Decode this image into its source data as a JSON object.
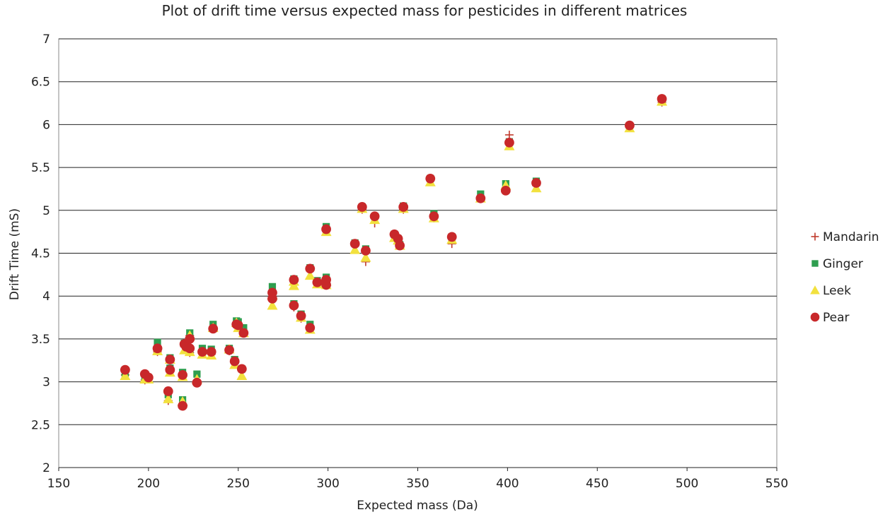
{
  "chart_data": {
    "type": "scatter",
    "title": "Plot of drift time versus expected mass for pesticides in different matrices",
    "xlabel": "Expected mass (Da)",
    "ylabel": "Drift Time (mS)",
    "xlim": [
      150,
      550
    ],
    "ylim": [
      2,
      7
    ],
    "xticks": [
      150,
      200,
      250,
      300,
      350,
      400,
      450,
      500,
      550
    ],
    "yticks": [
      2,
      2.5,
      3,
      3.5,
      4,
      4.5,
      5,
      5.5,
      6,
      6.5,
      7
    ],
    "xtick_labels": [
      "150",
      "200",
      "250",
      "300",
      "350",
      "400",
      "450",
      "500",
      "550"
    ],
    "ytick_labels": [
      "2",
      "2.5",
      "3",
      "3.5",
      "4",
      "4.5",
      "5",
      "5.5",
      "6",
      "6.5",
      "7"
    ],
    "grid": "horizontal",
    "legend_position": "right",
    "series": [
      {
        "name": "Mandarin",
        "marker": "plus",
        "color": "#c0392b",
        "x": [
          187,
          198,
          200,
          205,
          211,
          212,
          212,
          219,
          219,
          220,
          221,
          223,
          223,
          227,
          230,
          235,
          236,
          245,
          248,
          249,
          250,
          252,
          253,
          269,
          269,
          281,
          281,
          285,
          290,
          290,
          294,
          299,
          299,
          299,
          315,
          319,
          321,
          326,
          337,
          339,
          340,
          342,
          357,
          359,
          369,
          385,
          399,
          401,
          416,
          468,
          486
        ],
        "y": [
          3.08,
          3.02,
          3.03,
          3.35,
          2.78,
          3.12,
          3.27,
          2.74,
          3.08,
          3.41,
          3.38,
          3.34,
          3.54,
          3.0,
          3.33,
          3.32,
          3.63,
          3.36,
          3.22,
          3.68,
          3.64,
          3.13,
          3.57,
          3.97,
          4.06,
          3.87,
          4.18,
          3.74,
          3.62,
          4.32,
          4.15,
          4.17,
          4.14,
          4.76,
          4.59,
          5.01,
          4.4,
          4.85,
          4.7,
          4.64,
          4.59,
          5.01,
          5.35,
          4.91,
          4.61,
          5.14,
          5.26,
          5.88,
          5.29,
          5.97,
          6.26
        ]
      },
      {
        "name": "Ginger",
        "marker": "square",
        "color": "#2e9e4f",
        "x": [
          187,
          198,
          200,
          205,
          211,
          212,
          212,
          219,
          219,
          220,
          221,
          223,
          223,
          227,
          230,
          235,
          236,
          245,
          248,
          249,
          250,
          252,
          253,
          269,
          269,
          281,
          281,
          285,
          290,
          290,
          294,
          299,
          299,
          299,
          315,
          319,
          321,
          326,
          337,
          339,
          340,
          342,
          357,
          359,
          369,
          385,
          399,
          401,
          416,
          468,
          486
        ],
        "y": [
          3.1,
          3.06,
          3.05,
          3.46,
          2.85,
          3.16,
          3.28,
          2.79,
          3.11,
          3.45,
          3.44,
          3.37,
          3.57,
          3.09,
          3.39,
          3.38,
          3.67,
          3.39,
          3.26,
          3.71,
          3.7,
          3.15,
          3.63,
          3.99,
          4.11,
          3.91,
          4.2,
          3.79,
          3.67,
          4.33,
          4.18,
          4.22,
          4.18,
          4.81,
          4.62,
          5.04,
          4.55,
          4.93,
          4.72,
          4.67,
          4.6,
          5.05,
          5.37,
          4.96,
          4.69,
          5.19,
          5.31,
          5.8,
          5.34,
          5.99,
          6.3
        ]
      },
      {
        "name": "Leek",
        "marker": "triangle",
        "color": "#f2e13e",
        "x": [
          187,
          198,
          200,
          205,
          211,
          212,
          212,
          219,
          219,
          220,
          221,
          223,
          223,
          227,
          230,
          235,
          236,
          245,
          248,
          249,
          250,
          252,
          253,
          269,
          269,
          281,
          281,
          285,
          290,
          290,
          294,
          299,
          299,
          299,
          315,
          319,
          321,
          326,
          337,
          339,
          340,
          342,
          357,
          359,
          369,
          385,
          399,
          401,
          416,
          468,
          486
        ],
        "y": [
          3.07,
          3.03,
          3.03,
          3.36,
          2.8,
          3.11,
          3.26,
          2.77,
          3.06,
          3.37,
          3.4,
          3.35,
          3.54,
          3.03,
          3.32,
          3.31,
          3.63,
          3.38,
          3.2,
          3.69,
          3.63,
          3.07,
          3.57,
          3.89,
          4.01,
          4.12,
          4.17,
          3.75,
          3.61,
          4.24,
          4.14,
          4.17,
          4.13,
          4.75,
          4.54,
          5.02,
          4.45,
          4.89,
          4.68,
          4.65,
          4.59,
          5.02,
          5.33,
          4.91,
          4.66,
          5.14,
          5.29,
          5.75,
          5.26,
          5.96,
          6.27
        ]
      },
      {
        "name": "Pear",
        "marker": "circle",
        "color": "#c8282a",
        "x": [
          187,
          198,
          200,
          205,
          211,
          212,
          212,
          219,
          219,
          220,
          221,
          223,
          223,
          227,
          230,
          235,
          236,
          245,
          248,
          249,
          250,
          252,
          253,
          269,
          269,
          281,
          281,
          285,
          290,
          290,
          294,
          299,
          299,
          299,
          315,
          319,
          321,
          326,
          337,
          339,
          340,
          342,
          357,
          359,
          369,
          385,
          399,
          401,
          416,
          468,
          486
        ],
        "y": [
          3.14,
          3.09,
          3.05,
          3.39,
          2.89,
          3.14,
          3.26,
          2.72,
          3.08,
          3.44,
          3.41,
          3.39,
          3.5,
          2.99,
          3.35,
          3.35,
          3.62,
          3.37,
          3.24,
          3.67,
          3.66,
          3.15,
          3.57,
          3.97,
          4.04,
          3.89,
          4.19,
          3.77,
          3.63,
          4.32,
          4.16,
          4.19,
          4.13,
          4.78,
          4.61,
          5.04,
          4.53,
          4.93,
          4.72,
          4.67,
          4.59,
          5.04,
          5.37,
          4.93,
          4.69,
          5.14,
          5.23,
          5.79,
          5.32,
          5.99,
          6.3
        ]
      }
    ]
  }
}
